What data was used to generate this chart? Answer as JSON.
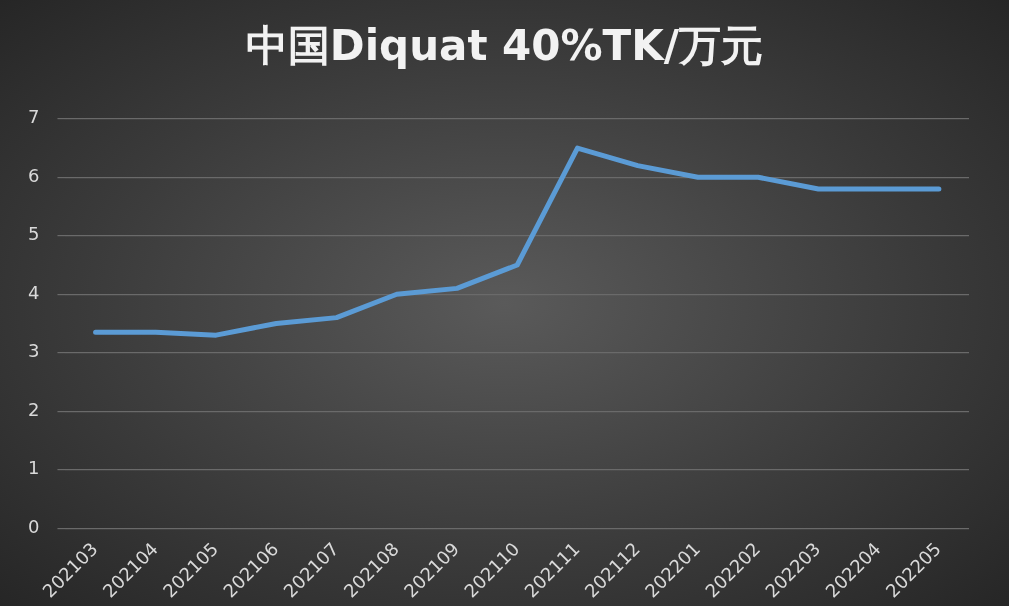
{
  "chart_data": {
    "type": "line",
    "title": "中国Diquat 40%TK/万元",
    "categories": [
      "202103",
      "202104",
      "202105",
      "202106",
      "202107",
      "202108",
      "202109",
      "202110",
      "202111",
      "202112",
      "202201",
      "202202",
      "202203",
      "202204",
      "202205"
    ],
    "series": [
      {
        "color": "#5b9bd5",
        "values": [
          3.35,
          3.35,
          3.3,
          3.5,
          3.6,
          4.0,
          4.1,
          4.5,
          6.5,
          6.2,
          6.0,
          6.0,
          5.8,
          5.8,
          5.8
        ]
      }
    ],
    "ylim": [
      0,
      7
    ],
    "yticks": [
      0,
      1,
      2,
      3,
      4,
      5,
      6,
      7
    ],
    "grid": "y",
    "legend": false,
    "marker": "none",
    "line_style": "solid"
  }
}
